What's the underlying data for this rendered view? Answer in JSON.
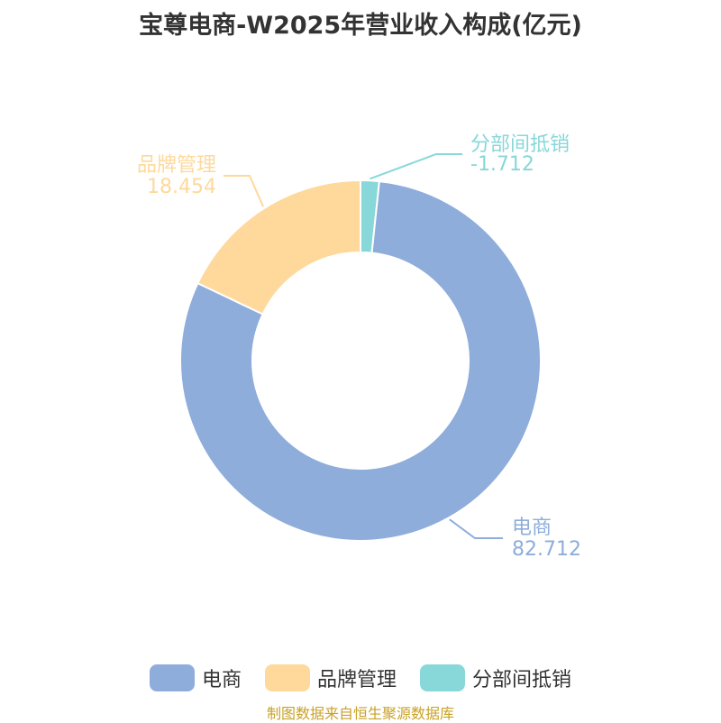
{
  "title": "宝尊电商-W2025年营业收入构成(亿元)",
  "source": "制图数据来自恒生聚源数据库",
  "chart_data": {
    "type": "pie",
    "title": "宝尊电商-W2025年营业收入构成(亿元)",
    "donut": true,
    "series": [
      {
        "name": "电商",
        "value": 82.712,
        "label": "82.712",
        "color": "#8eaddb"
      },
      {
        "name": "品牌管理",
        "value": 18.454,
        "label": "18.454",
        "color": "#fed99b"
      },
      {
        "name": "分部间抵销",
        "value": -1.712,
        "label": "-1.712",
        "color": "#88d7d9"
      }
    ],
    "legend_position": "bottom"
  }
}
